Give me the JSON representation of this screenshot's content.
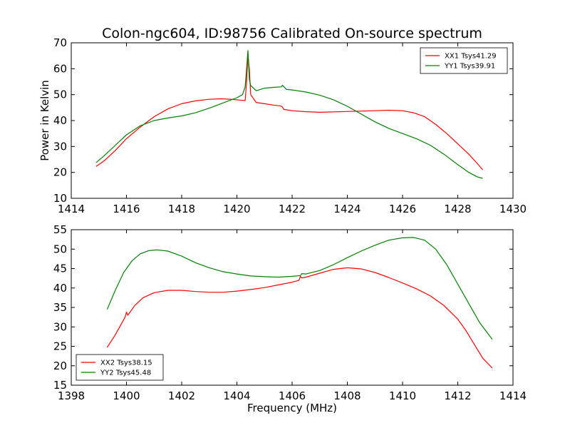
{
  "figure": {
    "title": "Colon-ngc604, ID:98756 Calibrated On-source spectrum"
  },
  "chart_data": [
    {
      "type": "line",
      "title": "Colon-ngc604, ID:98756 Calibrated On-source spectrum",
      "xlabel": "",
      "ylabel": "Power in Kelvin",
      "xlim": [
        1414,
        1430
      ],
      "ylim": [
        10,
        70
      ],
      "xticks": [
        1414,
        1416,
        1418,
        1420,
        1422,
        1424,
        1426,
        1428,
        1430
      ],
      "yticks": [
        10,
        20,
        30,
        40,
        50,
        60,
        70
      ],
      "grid": false,
      "legend": "top-right",
      "series": [
        {
          "name": "XX1 Tsys41.29",
          "color": "#ff0000",
          "points": [
            [
              1414.9,
              22.3
            ],
            [
              1415.2,
              24.5
            ],
            [
              1415.6,
              28.5
            ],
            [
              1416.0,
              33.0
            ],
            [
              1416.5,
              37.5
            ],
            [
              1417.0,
              41.5
            ],
            [
              1417.5,
              44.5
            ],
            [
              1418.0,
              46.5
            ],
            [
              1418.5,
              47.6
            ],
            [
              1419.0,
              48.2
            ],
            [
              1419.4,
              48.4
            ],
            [
              1419.8,
              48.2
            ],
            [
              1420.1,
              47.9
            ],
            [
              1420.3,
              47.7
            ],
            [
              1420.35,
              55.0
            ],
            [
              1420.4,
              65.5
            ],
            [
              1420.45,
              60.0
            ],
            [
              1420.5,
              50.0
            ],
            [
              1420.7,
              47.0
            ],
            [
              1421.0,
              46.5
            ],
            [
              1421.3,
              46.0
            ],
            [
              1421.6,
              45.6
            ],
            [
              1421.65,
              45.2
            ],
            [
              1421.7,
              44.3
            ],
            [
              1422.0,
              43.8
            ],
            [
              1422.5,
              43.4
            ],
            [
              1423.0,
              43.2
            ],
            [
              1424.0,
              43.5
            ],
            [
              1425.0,
              43.8
            ],
            [
              1425.5,
              44.0
            ],
            [
              1426.0,
              43.8
            ],
            [
              1426.4,
              43.0
            ],
            [
              1426.8,
              41.5
            ],
            [
              1427.2,
              38.5
            ],
            [
              1427.6,
              35.0
            ],
            [
              1428.0,
              31.0
            ],
            [
              1428.4,
              27.0
            ],
            [
              1428.7,
              23.5
            ],
            [
              1428.9,
              21.0
            ]
          ]
        },
        {
          "name": "YY1 Tsys39.91",
          "color": "#008000",
          "points": [
            [
              1414.9,
              23.8
            ],
            [
              1415.2,
              26.5
            ],
            [
              1415.6,
              30.5
            ],
            [
              1416.0,
              34.5
            ],
            [
              1416.5,
              38.0
            ],
            [
              1417.0,
              40.0
            ],
            [
              1417.5,
              41.0
            ],
            [
              1418.0,
              41.8
            ],
            [
              1418.5,
              43.0
            ],
            [
              1419.0,
              44.8
            ],
            [
              1419.5,
              46.8
            ],
            [
              1420.0,
              48.8
            ],
            [
              1420.2,
              50.0
            ],
            [
              1420.3,
              53.0
            ],
            [
              1420.4,
              67.0
            ],
            [
              1420.45,
              56.0
            ],
            [
              1420.5,
              53.5
            ],
            [
              1420.7,
              51.5
            ],
            [
              1421.0,
              52.5
            ],
            [
              1421.3,
              52.8
            ],
            [
              1421.6,
              53.0
            ],
            [
              1421.65,
              53.6
            ],
            [
              1421.8,
              52.0
            ],
            [
              1422.0,
              51.8
            ],
            [
              1422.5,
              51.0
            ],
            [
              1423.0,
              49.8
            ],
            [
              1423.5,
              48.0
            ],
            [
              1424.0,
              45.5
            ],
            [
              1424.5,
              42.5
            ],
            [
              1425.0,
              39.5
            ],
            [
              1425.5,
              37.0
            ],
            [
              1426.0,
              35.0
            ],
            [
              1426.5,
              33.0
            ],
            [
              1427.0,
              30.5
            ],
            [
              1427.5,
              27.0
            ],
            [
              1428.0,
              23.0
            ],
            [
              1428.4,
              20.0
            ],
            [
              1428.7,
              18.3
            ],
            [
              1428.9,
              17.7
            ]
          ]
        }
      ]
    },
    {
      "type": "line",
      "title": "",
      "xlabel": "Frequency (MHz)",
      "ylabel": "",
      "xlim": [
        1398,
        1414
      ],
      "ylim": [
        15,
        55
      ],
      "xticks": [
        1398,
        1400,
        1402,
        1404,
        1406,
        1408,
        1410,
        1412,
        1414
      ],
      "yticks": [
        15,
        20,
        25,
        30,
        35,
        40,
        45,
        50,
        55
      ],
      "grid": false,
      "legend": "bottom-left",
      "series": [
        {
          "name": "XX2 Tsys38.15",
          "color": "#ff0000",
          "points": [
            [
              1399.3,
              24.7
            ],
            [
              1399.6,
              28.0
            ],
            [
              1399.95,
              32.5
            ],
            [
              1400.0,
              33.8
            ],
            [
              1400.05,
              33.0
            ],
            [
              1400.3,
              35.5
            ],
            [
              1400.6,
              37.5
            ],
            [
              1401.0,
              38.8
            ],
            [
              1401.5,
              39.4
            ],
            [
              1402.0,
              39.4
            ],
            [
              1402.5,
              39.1
            ],
            [
              1403.0,
              38.9
            ],
            [
              1403.5,
              38.9
            ],
            [
              1404.0,
              39.2
            ],
            [
              1404.5,
              39.6
            ],
            [
              1405.0,
              40.1
            ],
            [
              1405.5,
              40.8
            ],
            [
              1406.0,
              41.5
            ],
            [
              1406.25,
              42.0
            ],
            [
              1406.3,
              43.0
            ],
            [
              1406.35,
              42.6
            ],
            [
              1406.5,
              42.8
            ],
            [
              1407.0,
              43.8
            ],
            [
              1407.5,
              44.8
            ],
            [
              1408.0,
              45.2
            ],
            [
              1408.5,
              44.9
            ],
            [
              1409.0,
              44.0
            ],
            [
              1409.5,
              42.7
            ],
            [
              1410.0,
              41.3
            ],
            [
              1410.5,
              39.8
            ],
            [
              1411.0,
              38.0
            ],
            [
              1411.5,
              35.5
            ],
            [
              1412.0,
              32.0
            ],
            [
              1412.3,
              29.0
            ],
            [
              1412.6,
              25.5
            ],
            [
              1412.9,
              22.0
            ],
            [
              1413.25,
              19.4
            ]
          ]
        },
        {
          "name": "YY2 Tsys45.48",
          "color": "#008000",
          "points": [
            [
              1399.3,
              34.5
            ],
            [
              1399.6,
              39.5
            ],
            [
              1399.9,
              44.0
            ],
            [
              1400.2,
              47.0
            ],
            [
              1400.5,
              48.8
            ],
            [
              1400.8,
              49.6
            ],
            [
              1401.1,
              49.8
            ],
            [
              1401.5,
              49.5
            ],
            [
              1402.0,
              48.2
            ],
            [
              1402.5,
              46.5
            ],
            [
              1403.0,
              45.2
            ],
            [
              1403.5,
              44.2
            ],
            [
              1404.0,
              43.6
            ],
            [
              1404.5,
              43.1
            ],
            [
              1405.0,
              42.9
            ],
            [
              1405.5,
              42.8
            ],
            [
              1406.0,
              43.0
            ],
            [
              1406.3,
              43.2
            ],
            [
              1406.35,
              43.7
            ],
            [
              1406.5,
              43.6
            ],
            [
              1407.0,
              44.5
            ],
            [
              1407.5,
              46.0
            ],
            [
              1408.0,
              47.8
            ],
            [
              1408.5,
              49.5
            ],
            [
              1409.0,
              51.0
            ],
            [
              1409.5,
              52.3
            ],
            [
              1410.0,
              52.9
            ],
            [
              1410.4,
              53.0
            ],
            [
              1410.8,
              52.3
            ],
            [
              1411.2,
              50.0
            ],
            [
              1411.6,
              46.0
            ],
            [
              1412.0,
              41.0
            ],
            [
              1412.4,
              36.0
            ],
            [
              1412.8,
              31.0
            ],
            [
              1413.25,
              26.8
            ]
          ]
        }
      ]
    }
  ]
}
